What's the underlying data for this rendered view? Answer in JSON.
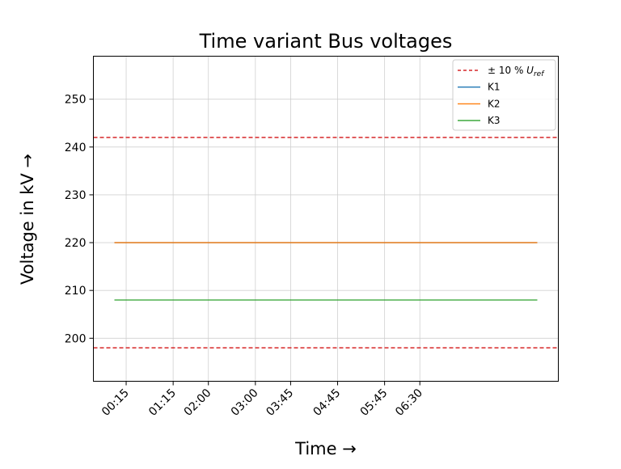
{
  "chart_data": {
    "type": "line",
    "title": "Time variant Bus voltages",
    "xlabel": "Time →",
    "ylabel": "Voltage in kV →",
    "x": [
      "00:00",
      "00:15",
      "00:30",
      "00:45",
      "01:00",
      "01:15",
      "01:30",
      "01:45",
      "02:00",
      "02:15",
      "02:30",
      "02:45",
      "03:00",
      "03:15",
      "03:30",
      "03:45",
      "04:00",
      "04:15",
      "04:30",
      "04:45",
      "05:00",
      "05:15",
      "05:30",
      "05:45",
      "06:00",
      "06:15",
      "06:30",
      "06:45",
      "07:00",
      "07:15",
      "07:30",
      "07:45",
      "08:00",
      "08:15",
      "08:30",
      "08:45",
      "09:00"
    ],
    "x_tick_labels": [
      "00:15",
      "01:15",
      "02:00",
      "03:00",
      "03:45",
      "04:45",
      "05:45",
      "06:30"
    ],
    "ylim": [
      191,
      259
    ],
    "y_ticks": [
      200,
      210,
      220,
      230,
      240,
      250
    ],
    "grid": true,
    "legend_position": "top-right",
    "reference_lines": [
      {
        "value": 242,
        "color": "#d62728",
        "style": "dashed"
      },
      {
        "value": 198,
        "color": "#d62728",
        "style": "dashed"
      }
    ],
    "legend": [
      {
        "label": "± 10 % U_ref",
        "label_main": "± 10 % ",
        "label_italic": "U",
        "label_sub": "ref",
        "color": "#d62728",
        "style": "dashed"
      },
      {
        "label": "K1",
        "color": "#1f77b4",
        "style": "solid"
      },
      {
        "label": "K2",
        "color": "#ff7f0e",
        "style": "solid"
      },
      {
        "label": "K3",
        "color": "#2ca02c",
        "style": "solid"
      }
    ],
    "series": [
      {
        "name": "K1",
        "color": "#1f77b4",
        "values": [
          220,
          220,
          220,
          220,
          220,
          220,
          220,
          220,
          220,
          220,
          220,
          220,
          220,
          220,
          220,
          220,
          220,
          220,
          220,
          220,
          220,
          220,
          220,
          220,
          220,
          220,
          220,
          220,
          220,
          220,
          220,
          220,
          220,
          220,
          220,
          220,
          220
        ]
      },
      {
        "name": "K2",
        "color": "#ff7f0e",
        "values": [
          220,
          220,
          220,
          220,
          220,
          220,
          220,
          220,
          220,
          220,
          220,
          220,
          220,
          220,
          220,
          220,
          220,
          220,
          220,
          220,
          220,
          220,
          220,
          220,
          220,
          220,
          220,
          220,
          220,
          220,
          220,
          220,
          220,
          220,
          220,
          220,
          220
        ]
      },
      {
        "name": "K3",
        "color": "#2ca02c",
        "values": [
          208,
          208,
          208,
          208,
          208,
          208,
          208,
          208,
          208,
          208,
          208,
          208,
          208,
          208,
          208,
          208,
          208,
          208,
          208,
          208,
          208,
          208,
          208,
          208,
          208,
          208,
          208,
          208,
          208,
          208,
          208,
          208,
          208,
          208,
          208,
          208,
          208
        ]
      }
    ]
  }
}
